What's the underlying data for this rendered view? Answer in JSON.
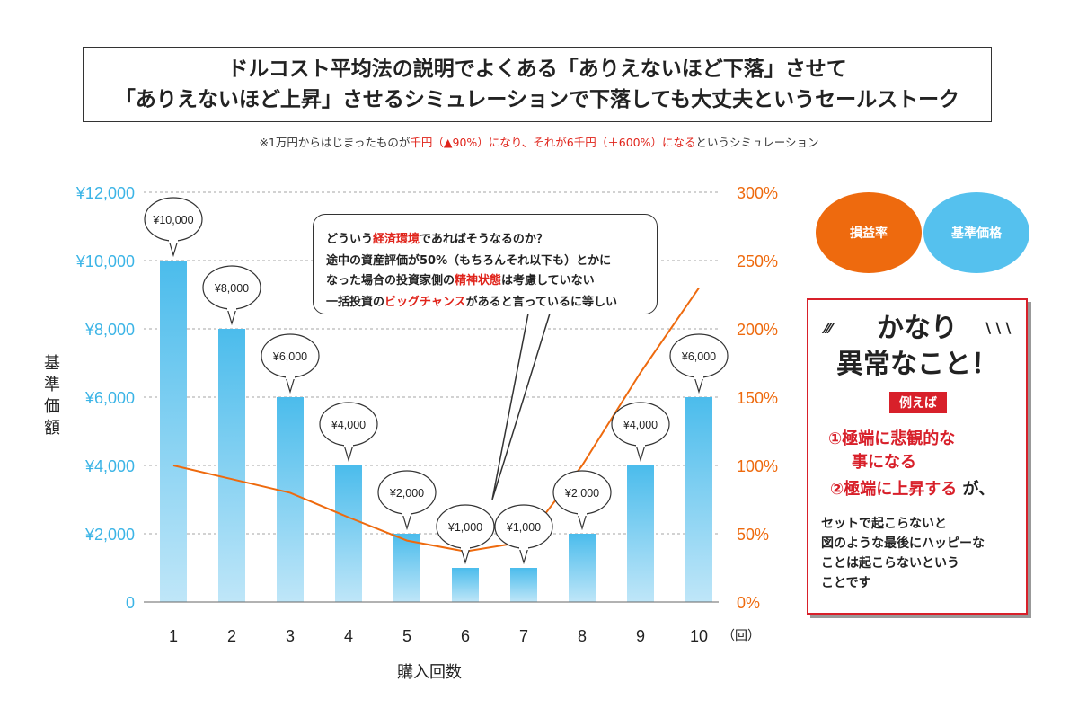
{
  "title": {
    "line1": "ドルコスト平均法の説明でよくある「ありえないほど下落」させて",
    "line2": "「ありえないほど上昇」させるシミュレーションで下落しても大丈夫というセールストーク"
  },
  "subtitle": {
    "part1": "※1万円からはじまったものが",
    "part2": "千円（▲90%）になり、それが6千円（＋600%）になる",
    "part3": "というシミュレーション"
  },
  "chart_data": {
    "type": "bar",
    "categories": [
      "1",
      "2",
      "3",
      "4",
      "5",
      "6",
      "7",
      "8",
      "9",
      "10"
    ],
    "series": [
      {
        "name": "基準価格",
        "values": [
          10000,
          8000,
          6000,
          4000,
          2000,
          1000,
          1000,
          2000,
          4000,
          6000
        ]
      },
      {
        "name": "損益率",
        "type": "line",
        "axis": "right",
        "values": [
          100,
          90,
          80,
          62,
          45,
          37,
          44,
          100,
          168,
          230
        ]
      }
    ],
    "bar_labels": [
      "¥10,000",
      "¥8,000",
      "¥6,000",
      "¥4,000",
      "¥2,000",
      "¥1,000",
      "¥1,000",
      "¥2,000",
      "¥4,000",
      "¥6,000"
    ],
    "xlabel": "購入回数",
    "x_unit": "（回）",
    "ylabel": "基準価額",
    "ylim": [
      0,
      12000
    ],
    "y2lim": [
      0,
      300
    ],
    "y_ticks": [
      "0",
      "¥2,000",
      "¥4,000",
      "¥6,000",
      "¥8,000",
      "¥10,000",
      "¥12,000"
    ],
    "y2_ticks": [
      "0%",
      "50%",
      "100%",
      "150%",
      "200%",
      "250%",
      "300%"
    ],
    "grid": true,
    "colors": {
      "bar_top": "#4bbcec",
      "bar_bottom": "#bfe6f8",
      "line": "#ee6a0e",
      "left_axis": "#3bb4e6",
      "right_axis": "#ee6a0e"
    }
  },
  "legend": {
    "orange_label": "損益率",
    "blue_label": "基準価格",
    "orange_color": "#ee6a0e",
    "blue_color": "#55c1ee"
  },
  "callout": {
    "line1_a": "どういう",
    "line1_b": "経済環境",
    "line1_c": "であればそうなるのか？",
    "line2": "途中の資産評価が50%（もちろんそれ以下も）とかに",
    "line3_a": "なった場合の投資家側の",
    "line3_b": "精神状態",
    "line3_c": "は考慮していない",
    "line4_a": "一括投資の",
    "line4_b": "ビッグチャンス",
    "line4_c": "があると言っているに等しい"
  },
  "note": {
    "heading1": "かなり",
    "heading2": "異常なこと！",
    "tag": "例えば",
    "item1a": "①極端に悲観的な",
    "item1b": "事になる",
    "item2": "②極端に上昇する",
    "item2_suffix": "が、",
    "body1": "セットで起こらないと",
    "body2": "図のような最後にハッピーな",
    "body3": "ことは起こらないという",
    "body4": "ことです"
  }
}
